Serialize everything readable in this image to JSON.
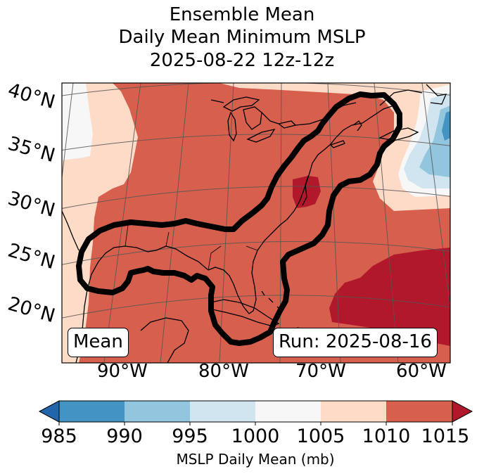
{
  "title": {
    "line1": "Ensemble Mean",
    "line2": "Daily Mean Minimum MSLP",
    "line3": "2025-08-22 12z-12z"
  },
  "map": {
    "lat_labels": [
      "40°N",
      "35°N",
      "30°N",
      "25°N",
      "20°N"
    ],
    "lon_labels": [
      "90°W",
      "80°W",
      "70°W",
      "60°W"
    ],
    "mean_label": "Mean",
    "run_label": "Run: 2025-08-16",
    "colors": {
      "c985_990": "#4393c3",
      "c990_995": "#92c5de",
      "c995_1000": "#d1e5f0",
      "c1000_1005": "#f7f7f7",
      "c1005_1010": "#fddbc7",
      "c1010_1015": "#d6604d",
      "c1015_plus": "#b2182b",
      "c_under": "#2166ac"
    },
    "contour_color": "#000000"
  },
  "colorbar": {
    "ticks": [
      "985",
      "990",
      "995",
      "1000",
      "1005",
      "1010",
      "1015"
    ],
    "label": "MSLP Daily Mean (mb)",
    "colors": [
      "#4393c3",
      "#92c5de",
      "#d1e5f0",
      "#f7f7f7",
      "#fddbc7",
      "#d6604d"
    ],
    "under_color": "#2166ac",
    "over_color": "#b2182b"
  }
}
